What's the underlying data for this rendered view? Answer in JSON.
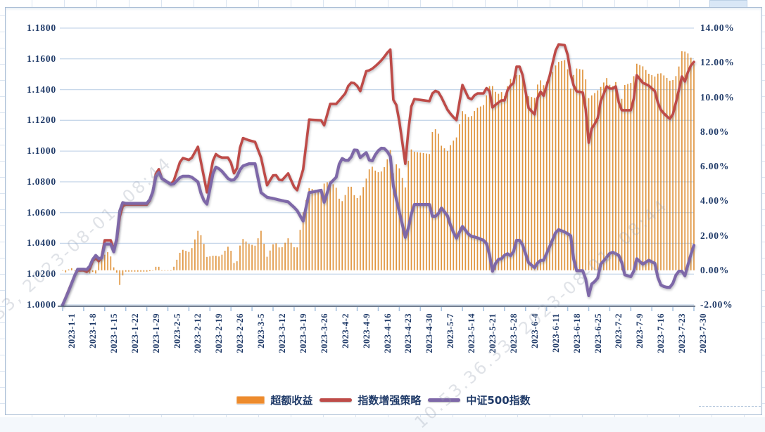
{
  "chart_data": {
    "type": "composite",
    "title": "",
    "x_axis": {
      "start_date": "2023-1-1",
      "end_date": "2023-7-30",
      "days_total": 211,
      "tick_every_days": 7,
      "tick_labels": [
        "2023-1-1",
        "2023-1-8",
        "2023-1-15",
        "2023-1-22",
        "2023-1-29",
        "2023-2-5",
        "2023-2-12",
        "2023-2-19",
        "2023-2-26",
        "2023-3-5",
        "2023-3-12",
        "2023-3-19",
        "2023-3-26",
        "2023-4-2",
        "2023-4-9",
        "2023-4-16",
        "2023-4-23",
        "2023-4-30",
        "2023-5-7",
        "2023-5-14",
        "2023-5-21",
        "2023-5-28",
        "2023-6-4",
        "2023-6-11",
        "2023-6-18",
        "2023-6-25",
        "2023-7-2",
        "2023-7-9",
        "2023-7-16",
        "2023-7-23",
        "2023-7-30"
      ]
    },
    "left_axis": {
      "min": 1.0,
      "max": 1.18,
      "tick_labels": [
        "1.1800",
        "1.1600",
        "1.1400",
        "1.1200",
        "1.1000",
        "1.0800",
        "1.0600",
        "1.0400",
        "1.0200",
        "1.0000"
      ]
    },
    "right_axis": {
      "min": -2,
      "max": 14,
      "tick_labels": [
        "14.00%",
        "12.00%",
        "10.00%",
        "8.00%",
        "6.00%",
        "4.00%",
        "2.00%",
        "0.00%",
        "-2.00%"
      ]
    },
    "grid": true,
    "legend_position": "bottom",
    "series": [
      {
        "name": "超额收益",
        "type": "bar",
        "axis": "right",
        "color": "#DD8C2F",
        "note": "daily excess return bars = strategy NAV minus index NAV, in percent"
      },
      {
        "name": "指数增强策略",
        "type": "line",
        "axis": "left",
        "color": "#BE4B48"
      },
      {
        "name": "中证500指数",
        "type": "line",
        "axis": "left",
        "color": "#7E68A8"
      }
    ],
    "anchors_format": [
      "day_index_from_2023-1-1",
      "指数增强策略_value",
      "中证500指数_value"
    ],
    "anchors": [
      [
        0,
        1.0,
        1.0
      ],
      [
        2,
        1.0095,
        1.009
      ],
      [
        4,
        1.019,
        1.019
      ],
      [
        5,
        1.0224,
        1.0232
      ],
      [
        7.5,
        1.0224,
        1.0232
      ],
      [
        8.5,
        1.0205,
        1.0228
      ],
      [
        10,
        1.0285,
        1.0295
      ],
      [
        11.5,
        1.0312,
        1.0335
      ],
      [
        12.7,
        1.0245,
        1.0252
      ],
      [
        13.5,
        1.042,
        1.0395
      ],
      [
        16,
        1.042,
        1.0395
      ],
      [
        17,
        1.0362,
        1.0345
      ],
      [
        18.2,
        1.043,
        1.045
      ],
      [
        19.3,
        1.0628,
        1.0672
      ],
      [
        20.5,
        1.0652,
        1.066
      ],
      [
        28.5,
        1.0652,
        1.066
      ],
      [
        30,
        1.0735,
        1.0735
      ],
      [
        31.5,
        1.0912,
        1.0882
      ],
      [
        33,
        1.0822,
        1.0822
      ],
      [
        36.5,
        1.0778,
        1.0778
      ],
      [
        39.5,
        1.0958,
        1.0837
      ],
      [
        42.5,
        1.094,
        1.0837
      ],
      [
        45,
        1.1028,
        1.08
      ],
      [
        46.5,
        1.088,
        1.069
      ],
      [
        48,
        1.0732,
        1.0655
      ],
      [
        50.5,
        1.0988,
        1.0902
      ],
      [
        52.5,
        1.0958,
        1.088
      ],
      [
        55.5,
        1.0958,
        1.081
      ],
      [
        57.5,
        1.0822,
        1.0815
      ],
      [
        59.5,
        1.1088,
        1.09
      ],
      [
        62,
        1.107,
        1.0918
      ],
      [
        64,
        1.106,
        1.0918
      ],
      [
        66,
        1.0958,
        1.073
      ],
      [
        68,
        1.0778,
        1.07
      ],
      [
        70.5,
        1.0858,
        1.069
      ],
      [
        72.5,
        1.08,
        1.068
      ],
      [
        75,
        1.0855,
        1.067
      ],
      [
        77.8,
        1.0732,
        1.062
      ],
      [
        80,
        1.088,
        1.0545
      ],
      [
        82,
        1.1205,
        1.073
      ],
      [
        86,
        1.12,
        1.0745
      ],
      [
        87,
        1.1168,
        1.0667
      ],
      [
        89,
        1.1307,
        1.079
      ],
      [
        91,
        1.1307,
        1.083
      ],
      [
        92.5,
        1.134,
        1.0958
      ],
      [
        94,
        1.1375,
        1.094
      ],
      [
        95.5,
        1.1447,
        1.094
      ],
      [
        97.5,
        1.144,
        1.103
      ],
      [
        99,
        1.139,
        1.0958
      ],
      [
        101,
        1.152,
        1.099
      ],
      [
        102.5,
        1.1528,
        1.0918
      ],
      [
        104.5,
        1.156,
        1.0995
      ],
      [
        106.5,
        1.16,
        1.1027
      ],
      [
        108.4,
        1.165,
        1.099
      ],
      [
        109,
        1.166,
        1.0965
      ],
      [
        109.8,
        1.134,
        1.079
      ],
      [
        111.3,
        1.129,
        1.0662
      ],
      [
        114,
        1.0918,
        1.0439
      ],
      [
        115.5,
        1.124,
        1.053
      ],
      [
        116.5,
        1.134,
        1.0653
      ],
      [
        122,
        1.1325,
        1.0653
      ],
      [
        123,
        1.1375,
        1.0576
      ],
      [
        124.5,
        1.14,
        1.0576
      ],
      [
        126,
        1.135,
        1.063
      ],
      [
        128,
        1.127,
        1.058
      ],
      [
        129.5,
        1.123,
        1.049
      ],
      [
        131,
        1.1202,
        1.0434
      ],
      [
        133,
        1.143,
        1.051
      ],
      [
        135.5,
        1.1325,
        1.0448
      ],
      [
        137.5,
        1.1375,
        1.044
      ],
      [
        140.5,
        1.1375,
        1.0416
      ],
      [
        141.5,
        1.1444,
        1.038
      ],
      [
        143,
        1.1284,
        1.0219
      ],
      [
        144.5,
        1.131,
        1.0295
      ],
      [
        146,
        1.133,
        1.03
      ],
      [
        147.5,
        1.133,
        1.0334
      ],
      [
        148.5,
        1.1462,
        1.033
      ],
      [
        149.5,
        1.139,
        1.031
      ],
      [
        151,
        1.1549,
        1.042
      ],
      [
        152.5,
        1.1549,
        1.042
      ],
      [
        155,
        1.128,
        1.0274
      ],
      [
        157,
        1.1239,
        1.0242
      ],
      [
        158.5,
        1.14,
        1.0288
      ],
      [
        160,
        1.136,
        1.029
      ],
      [
        162,
        1.149,
        1.0379
      ],
      [
        164.5,
        1.1695,
        1.0493
      ],
      [
        167.5,
        1.1688,
        1.047
      ],
      [
        169,
        1.15,
        1.045
      ],
      [
        170.5,
        1.139,
        1.0222
      ],
      [
        173.5,
        1.138,
        1.0222
      ],
      [
        175,
        1.1055,
        1.006
      ],
      [
        176.5,
        1.1193,
        1.0174
      ],
      [
        177.5,
        1.116,
        1.013
      ],
      [
        179,
        1.1325,
        1.0265
      ],
      [
        181,
        1.1421,
        1.031
      ],
      [
        182.5,
        1.14,
        1.0347
      ],
      [
        184,
        1.1421,
        1.0333
      ],
      [
        185.5,
        1.1266,
        1.0315
      ],
      [
        187,
        1.1266,
        1.0195
      ],
      [
        189.5,
        1.1266,
        1.018
      ],
      [
        191,
        1.1494,
        1.03
      ],
      [
        193,
        1.1444,
        1.0265
      ],
      [
        195,
        1.1426,
        1.029
      ],
      [
        197,
        1.139,
        1.027
      ],
      [
        198.5,
        1.128,
        1.0135
      ],
      [
        200.5,
        1.1234,
        1.0114
      ],
      [
        202.5,
        1.1202,
        1.0114
      ],
      [
        204.5,
        1.1353,
        1.0219
      ],
      [
        206,
        1.1485,
        1.0219
      ],
      [
        207,
        1.1453,
        1.0189
      ],
      [
        208.5,
        1.1545,
        1.0297
      ],
      [
        210,
        1.158,
        1.0388
      ]
    ],
    "bar_adjustments": {
      "1": -0.12,
      "3": 0.12,
      "12": 0.6,
      "13": 1.0,
      "14": 0.9,
      "15": 1.05,
      "16": 0.8,
      "19": -0.85,
      "20": -0.3
    }
  },
  "legend": {
    "items": [
      {
        "label": "超额收益",
        "color": "#ED8B2D",
        "shape": "bar"
      },
      {
        "label": "指数增强策略",
        "color": "#BE4B48",
        "shape": "line"
      },
      {
        "label": "中证500指数",
        "color": "#7E68A8",
        "shape": "line"
      }
    ]
  },
  "watermark": {
    "text": "10.53.36.33, 2023-08-01, 08:44"
  },
  "colors": {
    "bar": "#DD8C2F",
    "strategy_line": "#BE4B48",
    "index_line": "#7E68A8",
    "gridline": "#c7d7ea",
    "axis_text": "#1f3a68",
    "axis_line": "#44546a",
    "tick": "#a9c3e0",
    "frame_border": "#a8bcd4"
  }
}
